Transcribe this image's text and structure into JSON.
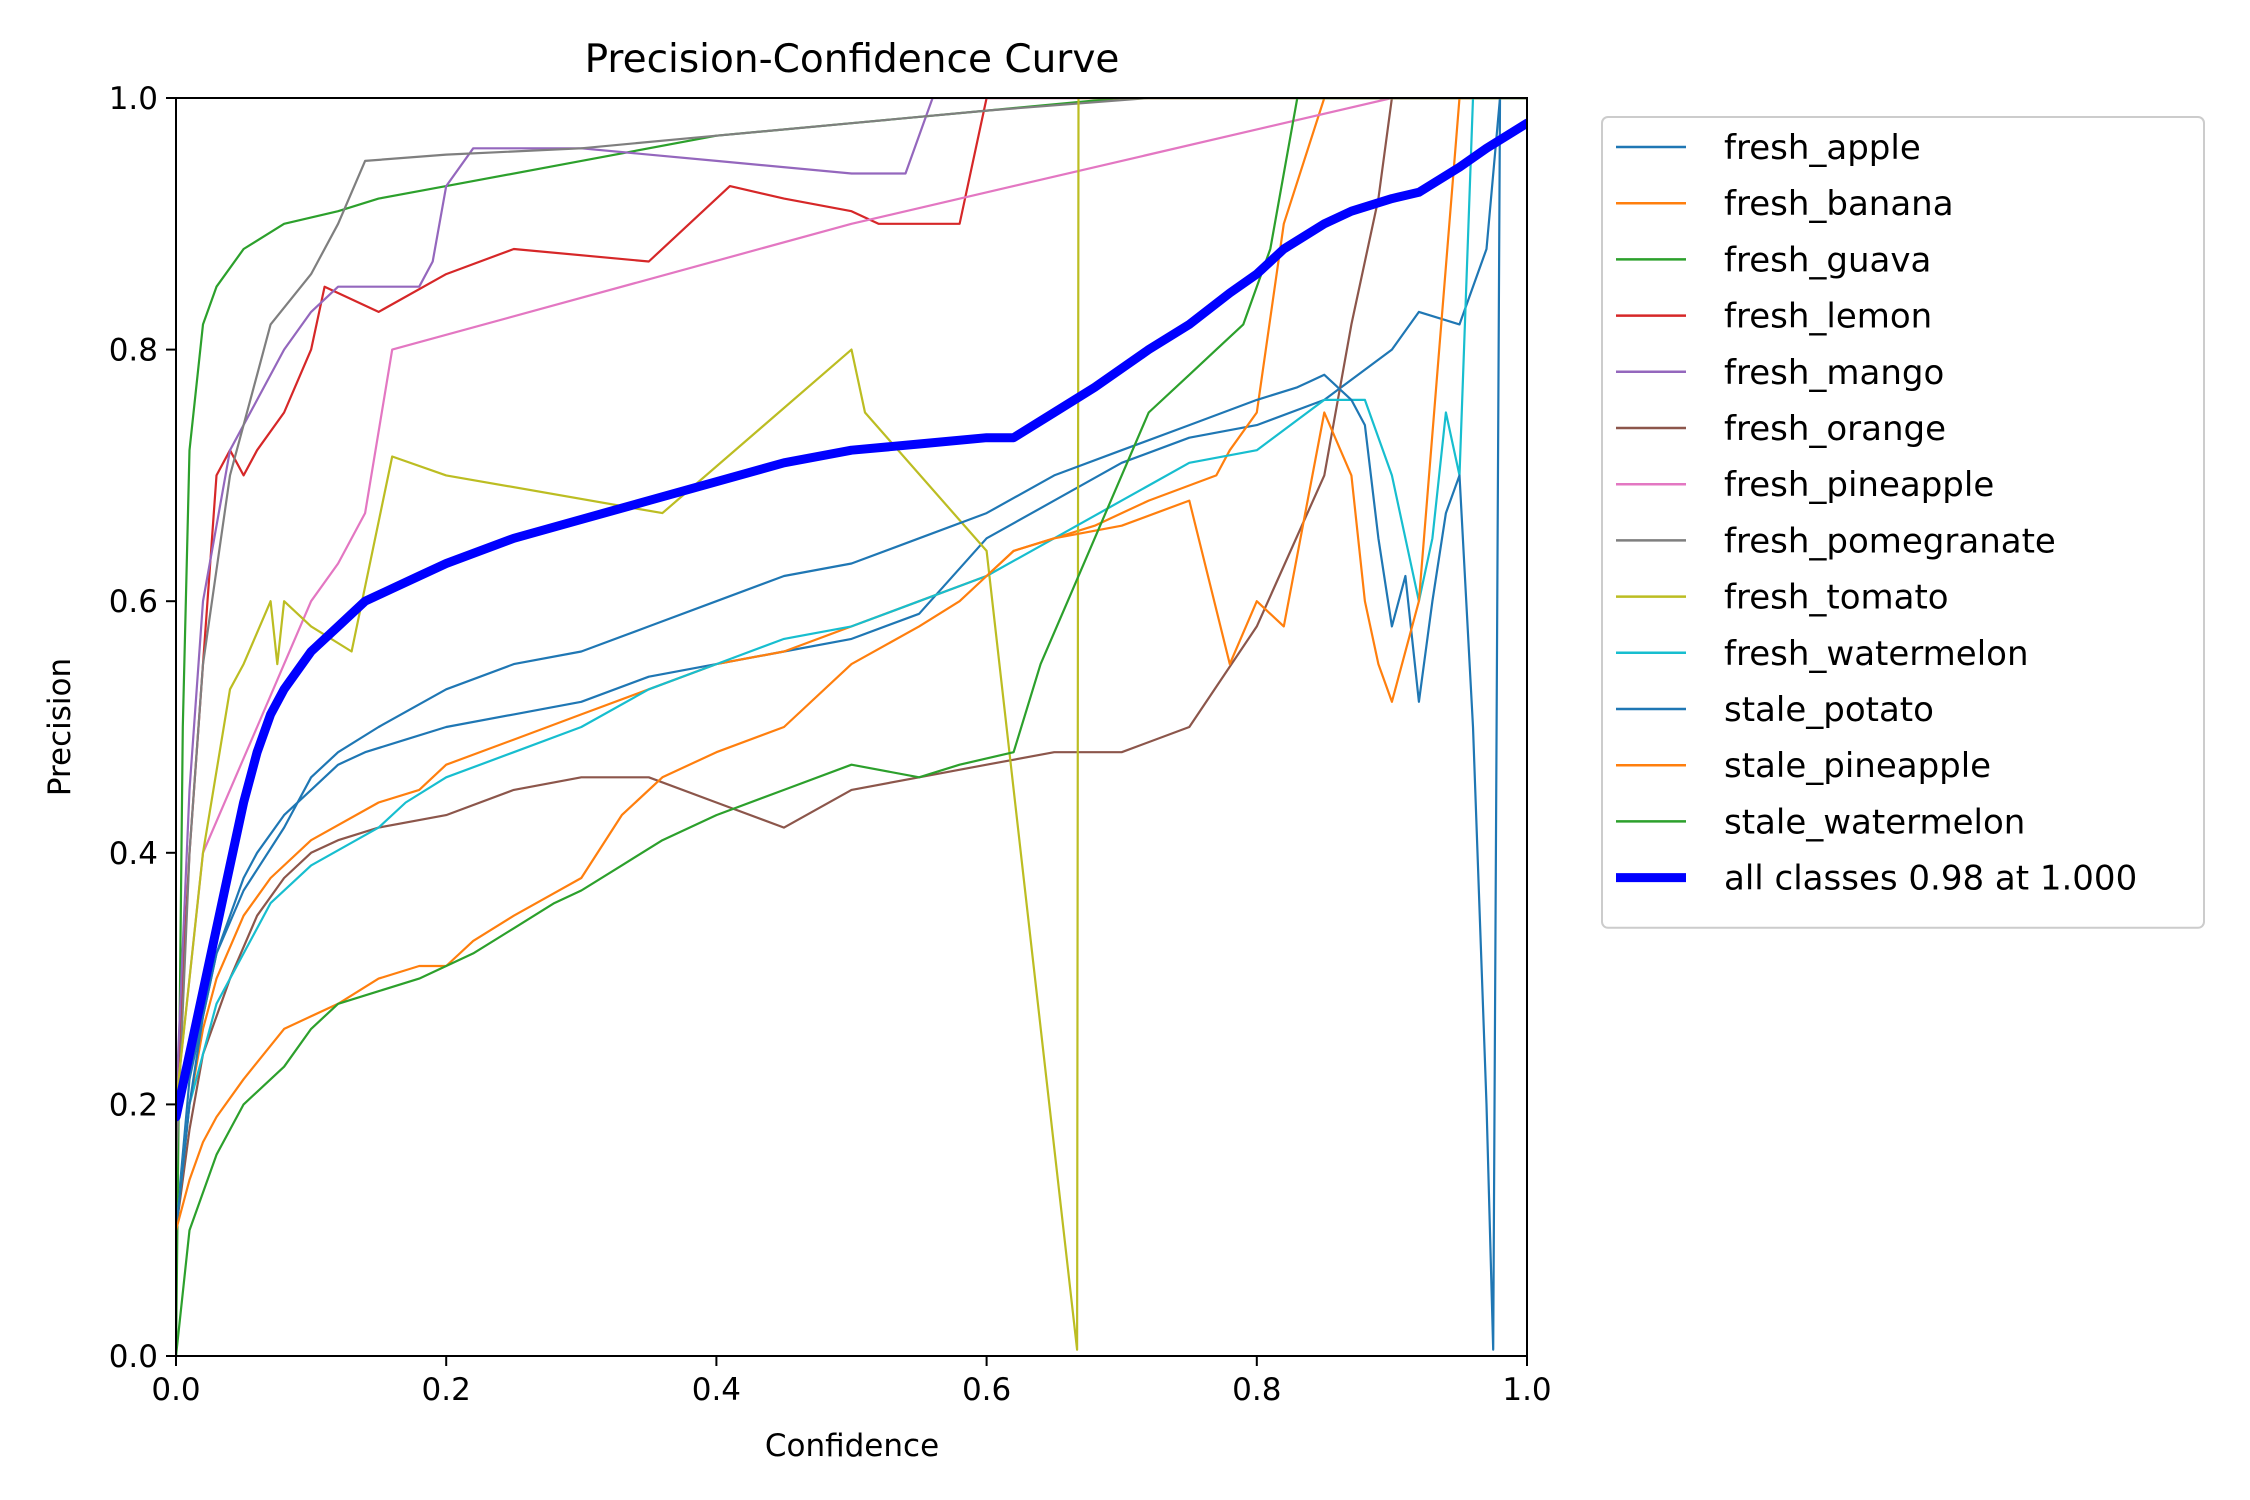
{
  "chart_data": {
    "type": "line",
    "title": "Precision-Confidence Curve",
    "xlabel": "Confidence",
    "ylabel": "Precision",
    "xlim": [
      0.0,
      1.0
    ],
    "ylim": [
      0.0,
      1.0
    ],
    "xticks": [
      "0.0",
      "0.2",
      "0.4",
      "0.6",
      "0.8",
      "1.0"
    ],
    "yticks": [
      "0.0",
      "0.2",
      "0.4",
      "0.6",
      "0.8",
      "1.0"
    ],
    "grid": false,
    "legend_position": "outside-right",
    "series": [
      {
        "name": "fresh_apple",
        "color": "#1f77b4",
        "x": [
          0.0,
          0.01,
          0.02,
          0.03,
          0.04,
          0.05,
          0.06,
          0.08,
          0.1,
          0.12,
          0.14,
          0.17,
          0.2,
          0.25,
          0.3,
          0.35,
          0.4,
          0.45,
          0.5,
          0.55,
          0.6,
          0.65,
          0.7,
          0.75,
          0.8,
          0.85,
          0.9,
          0.92,
          0.95,
          0.97,
          0.98,
          1.0
        ],
        "y": [
          0.1,
          0.22,
          0.27,
          0.32,
          0.35,
          0.38,
          0.4,
          0.43,
          0.45,
          0.47,
          0.48,
          0.49,
          0.5,
          0.51,
          0.52,
          0.54,
          0.55,
          0.56,
          0.57,
          0.59,
          0.65,
          0.68,
          0.71,
          0.73,
          0.74,
          0.76,
          0.8,
          0.83,
          0.82,
          0.88,
          1.0,
          1.0
        ]
      },
      {
        "name": "fresh_banana",
        "color": "#ff7f0e",
        "x": [
          0.0,
          0.01,
          0.02,
          0.03,
          0.05,
          0.07,
          0.1,
          0.15,
          0.18,
          0.2,
          0.25,
          0.3,
          0.35,
          0.4,
          0.45,
          0.5,
          0.55,
          0.6,
          0.62,
          0.65,
          0.68,
          0.72,
          0.77,
          0.78,
          0.8,
          0.82,
          0.85,
          0.87,
          0.89,
          0.91,
          0.93,
          0.95,
          1.0
        ],
        "y": [
          0.1,
          0.2,
          0.26,
          0.3,
          0.35,
          0.38,
          0.41,
          0.44,
          0.45,
          0.47,
          0.49,
          0.51,
          0.53,
          0.55,
          0.56,
          0.58,
          0.6,
          0.62,
          0.64,
          0.65,
          0.66,
          0.68,
          0.7,
          0.72,
          0.75,
          0.9,
          1.0,
          1.0,
          1.0,
          1.0,
          1.0,
          1.0,
          1.0
        ]
      },
      {
        "name": "fresh_guava",
        "color": "#2ca02c",
        "x": [
          0.0,
          0.005,
          0.01,
          0.02,
          0.03,
          0.05,
          0.08,
          0.12,
          0.15,
          0.2,
          0.3,
          0.4,
          0.5,
          0.6,
          0.7,
          0.8,
          0.9,
          1.0
        ],
        "y": [
          0.0,
          0.5,
          0.72,
          0.82,
          0.85,
          0.88,
          0.9,
          0.91,
          0.92,
          0.93,
          0.95,
          0.97,
          0.98,
          0.99,
          1.0,
          1.0,
          1.0,
          1.0
        ]
      },
      {
        "name": "fresh_lemon",
        "color": "#d62728",
        "x": [
          0.0,
          0.01,
          0.02,
          0.03,
          0.04,
          0.05,
          0.06,
          0.08,
          0.1,
          0.11,
          0.15,
          0.2,
          0.25,
          0.35,
          0.41,
          0.45,
          0.5,
          0.52,
          0.58,
          0.6,
          1.0
        ],
        "y": [
          0.2,
          0.4,
          0.55,
          0.7,
          0.72,
          0.7,
          0.72,
          0.75,
          0.8,
          0.85,
          0.83,
          0.86,
          0.88,
          0.87,
          0.93,
          0.92,
          0.91,
          0.9,
          0.9,
          1.0,
          1.0
        ]
      },
      {
        "name": "fresh_mango",
        "color": "#9467bd",
        "x": [
          0.0,
          0.01,
          0.02,
          0.04,
          0.06,
          0.08,
          0.1,
          0.12,
          0.15,
          0.18,
          0.19,
          0.2,
          0.22,
          0.3,
          0.4,
          0.5,
          0.54,
          0.56,
          0.58,
          1.0
        ],
        "y": [
          0.2,
          0.45,
          0.6,
          0.72,
          0.76,
          0.8,
          0.83,
          0.85,
          0.85,
          0.85,
          0.87,
          0.93,
          0.96,
          0.96,
          0.95,
          0.94,
          0.94,
          1.0,
          1.0,
          1.0
        ]
      },
      {
        "name": "fresh_orange",
        "color": "#8c564b",
        "x": [
          0.0,
          0.01,
          0.02,
          0.04,
          0.06,
          0.08,
          0.1,
          0.12,
          0.15,
          0.2,
          0.25,
          0.3,
          0.35,
          0.4,
          0.45,
          0.5,
          0.55,
          0.6,
          0.65,
          0.7,
          0.75,
          0.8,
          0.85,
          0.87,
          0.89,
          0.9,
          1.0
        ],
        "y": [
          0.1,
          0.18,
          0.24,
          0.3,
          0.35,
          0.38,
          0.4,
          0.41,
          0.42,
          0.43,
          0.45,
          0.46,
          0.46,
          0.44,
          0.42,
          0.45,
          0.46,
          0.47,
          0.48,
          0.48,
          0.5,
          0.58,
          0.7,
          0.82,
          0.92,
          1.0,
          1.0
        ]
      },
      {
        "name": "fresh_pineapple",
        "color": "#e377c2",
        "x": [
          0.0,
          0.02,
          0.04,
          0.06,
          0.08,
          0.1,
          0.12,
          0.14,
          0.16,
          0.5,
          0.9,
          1.0
        ],
        "y": [
          0.2,
          0.4,
          0.45,
          0.5,
          0.55,
          0.6,
          0.63,
          0.67,
          0.8,
          0.9,
          1.0,
          1.0
        ]
      },
      {
        "name": "fresh_pomegranate",
        "color": "#7f7f7f",
        "x": [
          0.0,
          0.01,
          0.02,
          0.04,
          0.06,
          0.07,
          0.1,
          0.12,
          0.14,
          0.2,
          0.3,
          0.4,
          0.5,
          0.6,
          0.72,
          1.0
        ],
        "y": [
          0.15,
          0.4,
          0.55,
          0.7,
          0.78,
          0.82,
          0.86,
          0.9,
          0.95,
          0.955,
          0.96,
          0.97,
          0.98,
          0.99,
          1.0,
          1.0
        ]
      },
      {
        "name": "fresh_tomato",
        "color": "#bcbd22",
        "x": [
          0.0,
          0.02,
          0.04,
          0.05,
          0.07,
          0.075,
          0.08,
          0.1,
          0.13,
          0.16,
          0.2,
          0.36,
          0.5,
          0.51,
          0.6,
          0.667,
          0.668,
          0.7,
          1.0
        ],
        "y": [
          0.2,
          0.4,
          0.53,
          0.55,
          0.6,
          0.55,
          0.6,
          0.58,
          0.56,
          0.715,
          0.7,
          0.67,
          0.8,
          0.75,
          0.64,
          0.005,
          1.0,
          1.0,
          1.0
        ]
      },
      {
        "name": "fresh_watermelon",
        "color": "#17becf",
        "x": [
          0.0,
          0.01,
          0.02,
          0.03,
          0.05,
          0.07,
          0.1,
          0.15,
          0.17,
          0.2,
          0.25,
          0.3,
          0.35,
          0.4,
          0.45,
          0.5,
          0.55,
          0.6,
          0.65,
          0.7,
          0.75,
          0.8,
          0.85,
          0.88,
          0.9,
          0.92,
          0.93,
          0.94,
          0.95,
          0.96,
          1.0
        ],
        "y": [
          0.1,
          0.2,
          0.24,
          0.28,
          0.32,
          0.36,
          0.39,
          0.42,
          0.44,
          0.46,
          0.48,
          0.5,
          0.53,
          0.55,
          0.57,
          0.58,
          0.6,
          0.62,
          0.65,
          0.68,
          0.71,
          0.72,
          0.76,
          0.76,
          0.7,
          0.6,
          0.65,
          0.75,
          0.7,
          1.0,
          1.0
        ]
      },
      {
        "name": "stale_potato",
        "color": "#1f77b4",
        "x": [
          0.0,
          0.01,
          0.02,
          0.03,
          0.05,
          0.08,
          0.1,
          0.12,
          0.15,
          0.2,
          0.25,
          0.3,
          0.35,
          0.4,
          0.45,
          0.5,
          0.55,
          0.6,
          0.65,
          0.7,
          0.75,
          0.8,
          0.83,
          0.85,
          0.87,
          0.88,
          0.89,
          0.9,
          0.91,
          0.92,
          0.93,
          0.94,
          0.95,
          0.96,
          0.97,
          0.975,
          0.98,
          1.0
        ],
        "y": [
          0.1,
          0.2,
          0.27,
          0.32,
          0.37,
          0.42,
          0.46,
          0.48,
          0.5,
          0.53,
          0.55,
          0.56,
          0.58,
          0.6,
          0.62,
          0.63,
          0.65,
          0.67,
          0.7,
          0.72,
          0.74,
          0.76,
          0.77,
          0.78,
          0.76,
          0.74,
          0.65,
          0.58,
          0.62,
          0.52,
          0.6,
          0.67,
          0.7,
          0.5,
          0.2,
          0.005,
          1.0,
          1.0
        ]
      },
      {
        "name": "stale_pineapple",
        "color": "#ff7f0e",
        "x": [
          0.0,
          0.01,
          0.02,
          0.03,
          0.05,
          0.08,
          0.1,
          0.12,
          0.15,
          0.18,
          0.2,
          0.22,
          0.25,
          0.3,
          0.33,
          0.36,
          0.4,
          0.45,
          0.5,
          0.55,
          0.58,
          0.6,
          0.62,
          0.65,
          0.7,
          0.75,
          0.78,
          0.8,
          0.82,
          0.85,
          0.87,
          0.88,
          0.89,
          0.9,
          0.92,
          0.95,
          1.0
        ],
        "y": [
          0.1,
          0.14,
          0.17,
          0.19,
          0.22,
          0.26,
          0.27,
          0.28,
          0.3,
          0.31,
          0.31,
          0.33,
          0.35,
          0.38,
          0.43,
          0.46,
          0.48,
          0.5,
          0.55,
          0.58,
          0.6,
          0.62,
          0.64,
          0.65,
          0.66,
          0.68,
          0.55,
          0.6,
          0.58,
          0.75,
          0.7,
          0.6,
          0.55,
          0.52,
          0.6,
          1.0,
          1.0
        ]
      },
      {
        "name": "stale_watermelon",
        "color": "#2ca02c",
        "x": [
          0.0,
          0.01,
          0.02,
          0.03,
          0.05,
          0.08,
          0.1,
          0.12,
          0.15,
          0.18,
          0.2,
          0.22,
          0.25,
          0.28,
          0.3,
          0.33,
          0.36,
          0.4,
          0.45,
          0.5,
          0.55,
          0.58,
          0.62,
          0.64,
          0.66,
          0.7,
          0.72,
          0.75,
          0.77,
          0.79,
          0.81,
          0.83,
          1.0
        ],
        "y": [
          0.0,
          0.1,
          0.13,
          0.16,
          0.2,
          0.23,
          0.26,
          0.28,
          0.29,
          0.3,
          0.31,
          0.32,
          0.34,
          0.36,
          0.37,
          0.39,
          0.41,
          0.43,
          0.45,
          0.47,
          0.46,
          0.47,
          0.48,
          0.55,
          0.6,
          0.7,
          0.75,
          0.78,
          0.8,
          0.82,
          0.88,
          1.0,
          1.0
        ]
      },
      {
        "name": "all classes 0.98 at 1.000",
        "color": "#0000ff",
        "thick": true,
        "x": [
          0.0,
          0.01,
          0.02,
          0.03,
          0.04,
          0.05,
          0.06,
          0.07,
          0.08,
          0.1,
          0.12,
          0.14,
          0.16,
          0.18,
          0.2,
          0.25,
          0.3,
          0.35,
          0.4,
          0.45,
          0.5,
          0.55,
          0.6,
          0.62,
          0.65,
          0.68,
          0.72,
          0.75,
          0.78,
          0.8,
          0.82,
          0.85,
          0.87,
          0.9,
          0.92,
          0.95,
          0.97,
          1.0
        ],
        "y": [
          0.19,
          0.24,
          0.29,
          0.34,
          0.39,
          0.44,
          0.48,
          0.51,
          0.53,
          0.56,
          0.58,
          0.6,
          0.61,
          0.62,
          0.63,
          0.65,
          0.665,
          0.68,
          0.695,
          0.71,
          0.72,
          0.725,
          0.73,
          0.73,
          0.75,
          0.77,
          0.8,
          0.82,
          0.845,
          0.86,
          0.88,
          0.9,
          0.91,
          0.92,
          0.925,
          0.945,
          0.96,
          0.98
        ]
      }
    ]
  }
}
